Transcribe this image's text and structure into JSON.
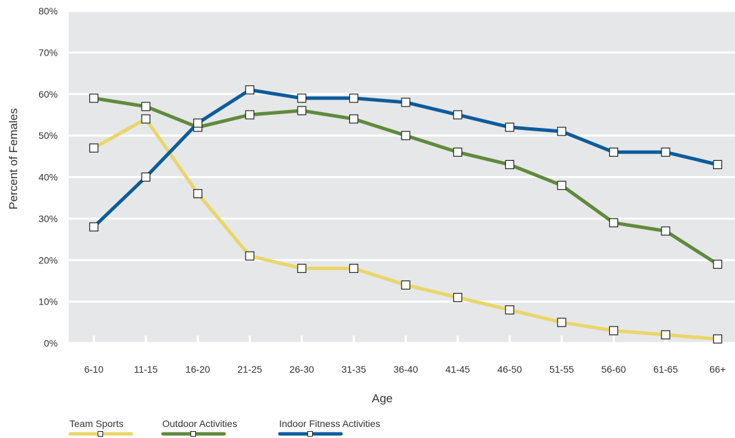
{
  "chart_data": {
    "type": "line",
    "xlabel": "Age",
    "ylabel": "Percent of Females",
    "ylim": [
      0,
      80
    ],
    "y_ticks": [
      "0%",
      "10%",
      "20%",
      "30%",
      "40%",
      "50%",
      "60%",
      "70%",
      "80%"
    ],
    "y_tick_values": [
      0,
      10,
      20,
      30,
      40,
      50,
      60,
      70,
      80
    ],
    "categories": [
      "6-10",
      "11-15",
      "16-20",
      "21-25",
      "26-30",
      "31-35",
      "36-40",
      "41-45",
      "46-50",
      "51-55",
      "56-60",
      "61-65",
      "66+"
    ],
    "grid": true,
    "legend_position": "bottom-left",
    "series": [
      {
        "name": "Team Sports",
        "color": "#e8d66a",
        "values": [
          47,
          54,
          36,
          21,
          18,
          18,
          14,
          11,
          8,
          5,
          3,
          2,
          1
        ]
      },
      {
        "name": "Outdoor Activities",
        "color": "#5f8a3c",
        "values": [
          59,
          57,
          52,
          55,
          56,
          54,
          50,
          46,
          43,
          38,
          29,
          27,
          19
        ]
      },
      {
        "name": "Indoor Fitness Activities",
        "color": "#0b5c9c",
        "values": [
          28,
          40,
          53,
          61,
          59,
          59,
          58,
          55,
          52,
          51,
          46,
          46,
          43
        ]
      }
    ]
  }
}
